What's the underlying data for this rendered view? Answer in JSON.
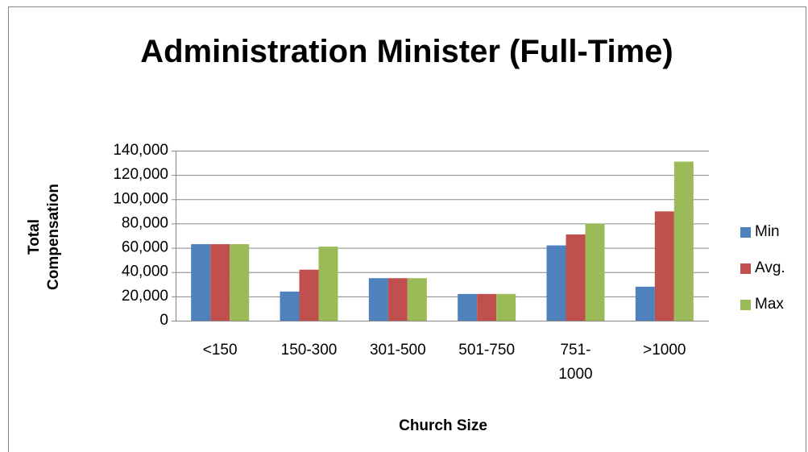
{
  "chart_data": {
    "type": "bar",
    "title": "Administration Minister (Full-Time)",
    "x_label": "Church Size",
    "y_label": "Total Compensation",
    "categories": [
      "<150",
      "150-300",
      "301-500",
      "501-750",
      "751-1000",
      ">1000"
    ],
    "series": [
      {
        "name": "Min",
        "color": "#4f81bd",
        "values": [
          63000,
          24000,
          35000,
          22000,
          62000,
          28000
        ]
      },
      {
        "name": "Avg.",
        "color": "#c0504d",
        "values": [
          63000,
          42000,
          35000,
          22000,
          71000,
          90000
        ]
      },
      {
        "name": "Max",
        "color": "#9bbb59",
        "values": [
          63000,
          61000,
          35000,
          22000,
          80000,
          131000
        ]
      }
    ],
    "ylim": [
      0,
      140000
    ],
    "yticks": [
      {
        "value": 0,
        "label": "0"
      },
      {
        "value": 20000,
        "label": "20,000"
      },
      {
        "value": 40000,
        "label": "40,000"
      },
      {
        "value": 60000,
        "label": "60,000"
      },
      {
        "value": 80000,
        "label": "80,000"
      },
      {
        "value": 100000,
        "label": "100,000"
      },
      {
        "value": 120000,
        "label": "120,000"
      },
      {
        "value": 140000,
        "label": "140,000"
      }
    ],
    "grid": true,
    "legend": "right"
  }
}
